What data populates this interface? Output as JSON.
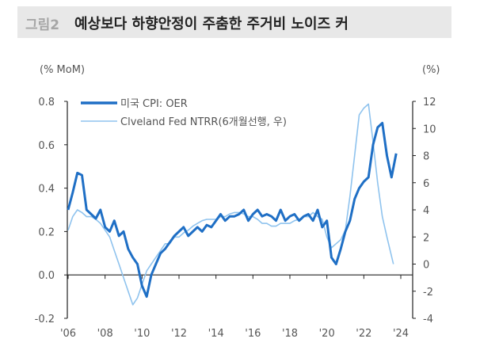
{
  "header": {
    "figure_label": "그림2",
    "title": "예상보다 하향안정이 주춤한 주거비 노이즈 커"
  },
  "chart_data": {
    "type": "line",
    "title": "예상보다 하향안정이 주춤한 주거비 노이즈 커",
    "left_unit": "(% MoM)",
    "right_unit": "(%)",
    "x_ticks": [
      "'06",
      "'08",
      "'10",
      "'12",
      "'14",
      "'16",
      "'18",
      "'20",
      "'22",
      "'24"
    ],
    "xlim": [
      2006,
      2024
    ],
    "y_left": {
      "ticks": [
        "0.8",
        "0.6",
        "0.4",
        "0.2",
        "0.0",
        "-0.2"
      ],
      "ylim": [
        -0.2,
        0.8
      ]
    },
    "y_right": {
      "ticks": [
        "12",
        "10",
        "8",
        "6",
        "4",
        "2",
        "0",
        "-2",
        "-4"
      ],
      "ylim": [
        -4,
        12
      ]
    },
    "legend_placement": "top-left",
    "series": [
      {
        "name": "미국 CPI: OER",
        "axis": "left",
        "color": "#1f6fc5",
        "x": [
          2006,
          2006.25,
          2006.5,
          2006.75,
          2007,
          2007.25,
          2007.5,
          2007.75,
          2008,
          2008.25,
          2008.5,
          2008.75,
          2009,
          2009.25,
          2009.5,
          2009.75,
          2010,
          2010.25,
          2010.5,
          2010.75,
          2011,
          2011.25,
          2011.5,
          2011.75,
          2012,
          2012.25,
          2012.5,
          2012.75,
          2013,
          2013.25,
          2013.5,
          2013.75,
          2014,
          2014.25,
          2014.5,
          2014.75,
          2015,
          2015.25,
          2015.5,
          2015.75,
          2016,
          2016.25,
          2016.5,
          2016.75,
          2017,
          2017.25,
          2017.5,
          2017.75,
          2018,
          2018.25,
          2018.5,
          2018.75,
          2019,
          2019.25,
          2019.5,
          2019.75,
          2020,
          2020.25,
          2020.5,
          2020.75,
          2021,
          2021.25,
          2021.5,
          2021.75,
          2022,
          2022.25,
          2022.5,
          2022.75,
          2023,
          2023.25,
          2023.5,
          2023.75
        ],
        "values": [
          0.3,
          0.38,
          0.47,
          0.46,
          0.3,
          0.28,
          0.26,
          0.3,
          0.22,
          0.2,
          0.25,
          0.18,
          0.2,
          0.12,
          0.08,
          0.05,
          -0.05,
          -0.1,
          0.0,
          0.05,
          0.1,
          0.12,
          0.15,
          0.18,
          0.2,
          0.22,
          0.18,
          0.2,
          0.22,
          0.2,
          0.23,
          0.22,
          0.25,
          0.28,
          0.25,
          0.27,
          0.27,
          0.28,
          0.3,
          0.25,
          0.28,
          0.3,
          0.27,
          0.28,
          0.27,
          0.25,
          0.3,
          0.25,
          0.27,
          0.28,
          0.25,
          0.27,
          0.28,
          0.25,
          0.3,
          0.22,
          0.25,
          0.08,
          0.05,
          0.12,
          0.2,
          0.25,
          0.35,
          0.4,
          0.43,
          0.45,
          0.6,
          0.68,
          0.7,
          0.55,
          0.45,
          0.56
        ]
      },
      {
        "name": "Clveland Fed NTRR(6개월선행,  우)",
        "axis": "right",
        "color": "#8fc3ee",
        "x": [
          2006,
          2006.25,
          2006.5,
          2006.75,
          2007,
          2007.25,
          2007.5,
          2007.75,
          2008,
          2008.25,
          2008.5,
          2008.75,
          2009,
          2009.25,
          2009.5,
          2009.75,
          2010,
          2010.25,
          2010.5,
          2010.75,
          2011,
          2011.25,
          2011.5,
          2011.75,
          2012,
          2012.25,
          2012.5,
          2012.75,
          2013,
          2013.25,
          2013.5,
          2013.75,
          2014,
          2014.25,
          2014.5,
          2014.75,
          2015,
          2015.25,
          2015.5,
          2015.75,
          2016,
          2016.25,
          2016.5,
          2016.75,
          2017,
          2017.25,
          2017.5,
          2017.75,
          2018,
          2018.25,
          2018.5,
          2018.75,
          2019,
          2019.25,
          2019.5,
          2019.75,
          2020,
          2020.25,
          2020.5,
          2020.75,
          2021,
          2021.25,
          2021.5,
          2021.75,
          2022,
          2022.25,
          2022.5,
          2022.75,
          2023,
          2023.25,
          2023.6
        ],
        "values": [
          2.5,
          3.5,
          4,
          3.8,
          3.5,
          3.5,
          3.3,
          3,
          2.5,
          2,
          1,
          0,
          -1,
          -2,
          -3,
          -2.5,
          -1.5,
          -0.5,
          0,
          0.5,
          1,
          1.5,
          1.5,
          2,
          2,
          2.3,
          2.5,
          2.8,
          3,
          3.2,
          3.3,
          3.3,
          3.3,
          3.5,
          3.5,
          3.7,
          3.8,
          3.8,
          3.7,
          3.5,
          3.5,
          3.3,
          3,
          3,
          2.8,
          2.8,
          3,
          3,
          3,
          3.2,
          3.3,
          3.5,
          3.5,
          3.8,
          3.5,
          3.3,
          2,
          1.2,
          1.5,
          1.8,
          2.5,
          5,
          8,
          11,
          11.5,
          11.8,
          9,
          6,
          3.5,
          2,
          0
        ]
      }
    ]
  }
}
